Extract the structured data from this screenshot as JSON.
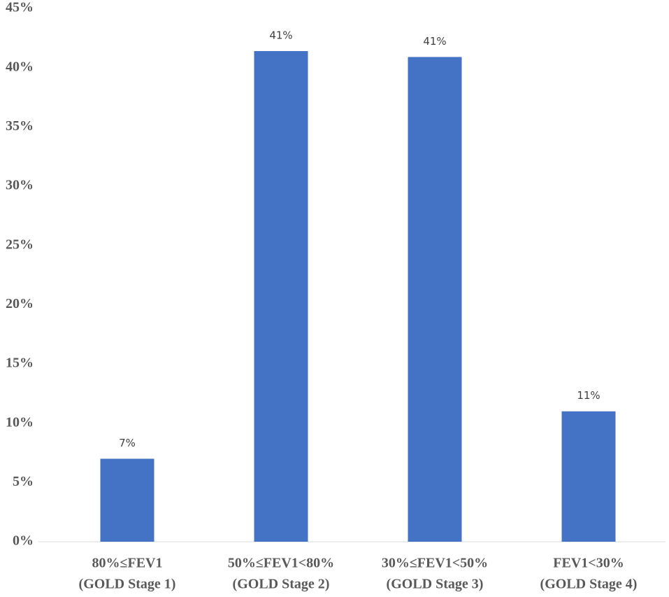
{
  "chart_data": {
    "type": "bar",
    "categories": [
      [
        "80%≤FEV1",
        "(GOLD Stage 1)"
      ],
      [
        "50%≤FEV1<80%",
        "(GOLD Stage 2)"
      ],
      [
        "30%≤FEV1<50%",
        "(GOLD Stage 3)"
      ],
      [
        "FEV1<30%",
        "(GOLD Stage 4)"
      ]
    ],
    "values": [
      7,
      41.4,
      40.9,
      11
    ],
    "value_labels": [
      "7%",
      "41%",
      "41%",
      "11%"
    ],
    "color": "#4472c4",
    "ylim": [
      0,
      45
    ],
    "yticks": [
      {
        "value": 0,
        "label": "0%"
      },
      {
        "value": 5,
        "label": "5%"
      },
      {
        "value": 10,
        "label": "10%"
      },
      {
        "value": 15,
        "label": "15%"
      },
      {
        "value": 20,
        "label": "20%"
      },
      {
        "value": 25,
        "label": "25%"
      },
      {
        "value": 30,
        "label": "30%"
      },
      {
        "value": 35,
        "label": "35%"
      },
      {
        "value": 40,
        "label": "40%"
      },
      {
        "value": 45,
        "label": "45%"
      }
    ],
    "grid": false
  }
}
